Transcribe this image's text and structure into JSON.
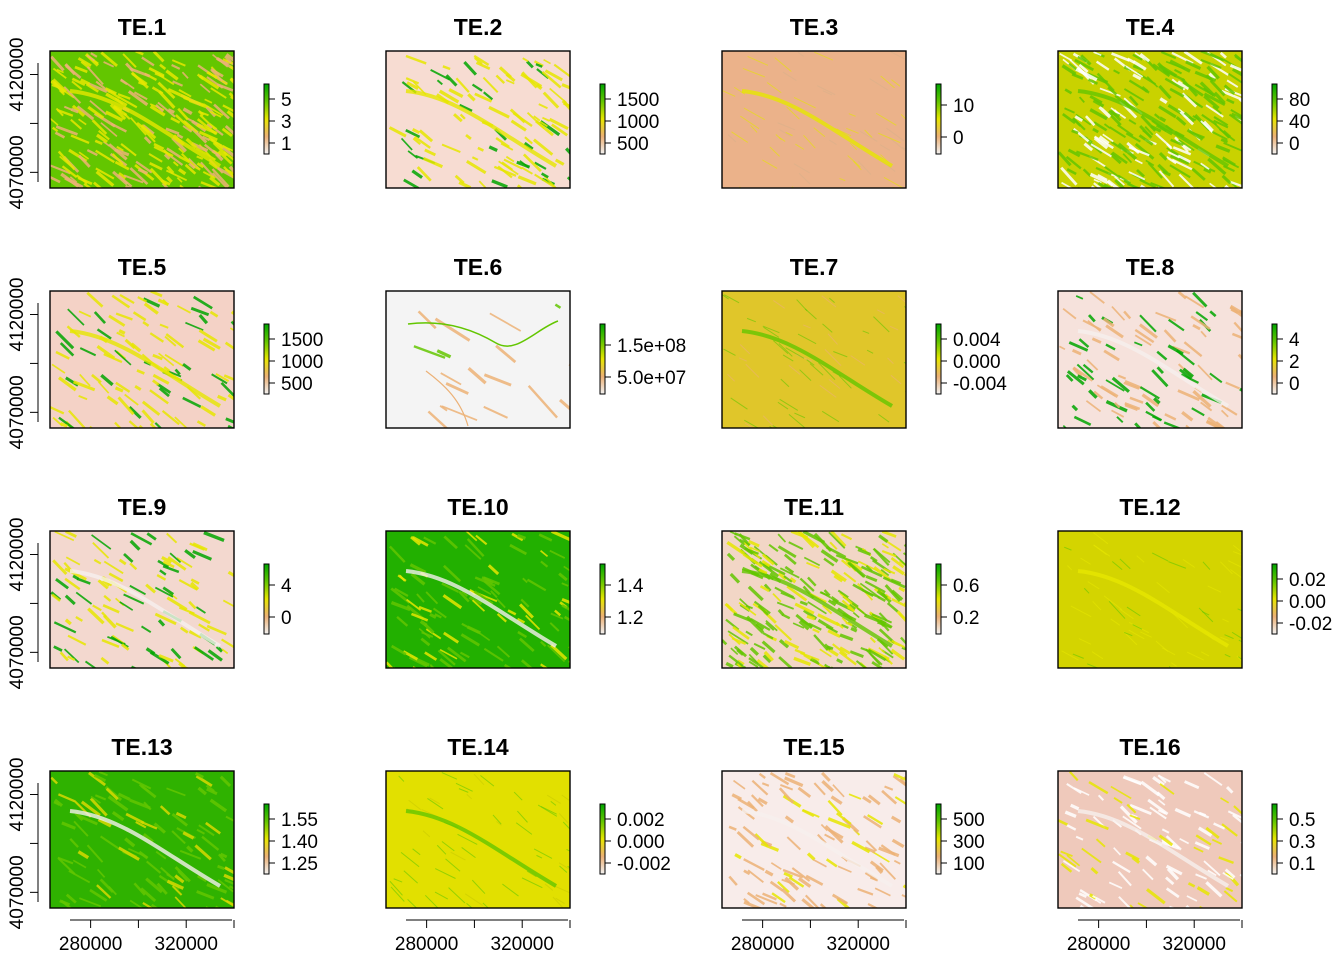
{
  "chart_data": {
    "type": "heatmap",
    "layout": {
      "rows": 4,
      "cols": 4
    },
    "colormap": [
      "#f2f2f2",
      "#ecb176",
      "#e6e600",
      "#63c600",
      "#00a600"
    ],
    "x_axis": {
      "ticks": [
        280000,
        320000
      ],
      "range": [
        263000,
        340000
      ],
      "shown_on_bottom_row": true
    },
    "y_axis": {
      "ticks": [
        4070000,
        4120000
      ],
      "range": [
        4062000,
        4132000
      ],
      "shown_on_left_column": true
    },
    "panels": [
      {
        "title": "TE.1",
        "legend": [
          "5",
          "3",
          "1"
        ]
      },
      {
        "title": "TE.2",
        "legend": [
          "1500",
          "1000",
          "500"
        ]
      },
      {
        "title": "TE.3",
        "legend": [
          "10",
          "0"
        ]
      },
      {
        "title": "TE.4",
        "legend": [
          "80",
          "40",
          "0"
        ]
      },
      {
        "title": "TE.5",
        "legend": [
          "1500",
          "1000",
          "500"
        ]
      },
      {
        "title": "TE.6",
        "legend": [
          "1.5e+08",
          "5.0e+07"
        ]
      },
      {
        "title": "TE.7",
        "legend": [
          "0.004",
          "0.000",
          "-0.004"
        ]
      },
      {
        "title": "TE.8",
        "legend": [
          "4",
          "2",
          "0"
        ]
      },
      {
        "title": "TE.9",
        "legend": [
          "4",
          "0"
        ]
      },
      {
        "title": "TE.10",
        "legend": [
          "1.4",
          "1.2"
        ]
      },
      {
        "title": "TE.11",
        "legend": [
          "0.6",
          "0.2"
        ]
      },
      {
        "title": "TE.12",
        "legend": [
          "0.02",
          "0.00",
          "-0.02"
        ]
      },
      {
        "title": "TE.13",
        "legend": [
          "1.55",
          "1.40",
          "1.25"
        ]
      },
      {
        "title": "TE.14",
        "legend": [
          "0.002",
          "0.000",
          "-0.002"
        ]
      },
      {
        "title": "TE.15",
        "legend": [
          "500",
          "300",
          "100"
        ]
      },
      {
        "title": "TE.16",
        "legend": [
          "0.5",
          "0.3",
          "0.1"
        ]
      }
    ]
  }
}
